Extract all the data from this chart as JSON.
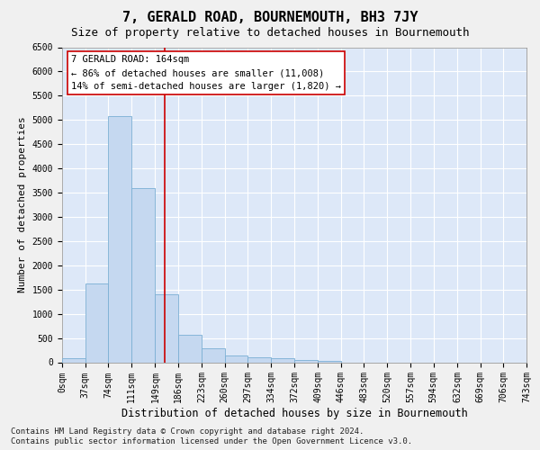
{
  "title": "7, GERALD ROAD, BOURNEMOUTH, BH3 7JY",
  "subtitle": "Size of property relative to detached houses in Bournemouth",
  "xlabel": "Distribution of detached houses by size in Bournemouth",
  "ylabel": "Number of detached properties",
  "bin_edges": [
    0,
    37,
    74,
    111,
    149,
    186,
    223,
    260,
    297,
    334,
    372,
    409,
    446,
    483,
    520,
    557,
    594,
    632,
    669,
    706,
    743
  ],
  "bar_values": [
    75,
    1625,
    5075,
    3600,
    1400,
    575,
    285,
    140,
    100,
    75,
    50,
    35,
    0,
    0,
    0,
    0,
    0,
    0,
    0,
    0
  ],
  "bar_color": "#c5d8f0",
  "bar_edge_color": "#7bafd4",
  "vline_x": 164,
  "vline_color": "#cc0000",
  "ylim": [
    0,
    6500
  ],
  "yticks": [
    0,
    500,
    1000,
    1500,
    2000,
    2500,
    3000,
    3500,
    4000,
    4500,
    5000,
    5500,
    6000,
    6500
  ],
  "annotation_title": "7 GERALD ROAD: 164sqm",
  "annotation_line1": "← 86% of detached houses are smaller (11,008)",
  "annotation_line2": "14% of semi-detached houses are larger (1,820) →",
  "annotation_box_color": "#ffffff",
  "annotation_border_color": "#cc0000",
  "footer_line1": "Contains HM Land Registry data © Crown copyright and database right 2024.",
  "footer_line2": "Contains public sector information licensed under the Open Government Licence v3.0.",
  "background_color": "#dde8f8",
  "grid_color": "#ffffff",
  "fig_background": "#f0f0f0",
  "title_fontsize": 11,
  "subtitle_fontsize": 9,
  "tick_label_fontsize": 7,
  "ylabel_fontsize": 8,
  "xlabel_fontsize": 8.5,
  "annotation_fontsize": 7.5,
  "footer_fontsize": 6.5
}
